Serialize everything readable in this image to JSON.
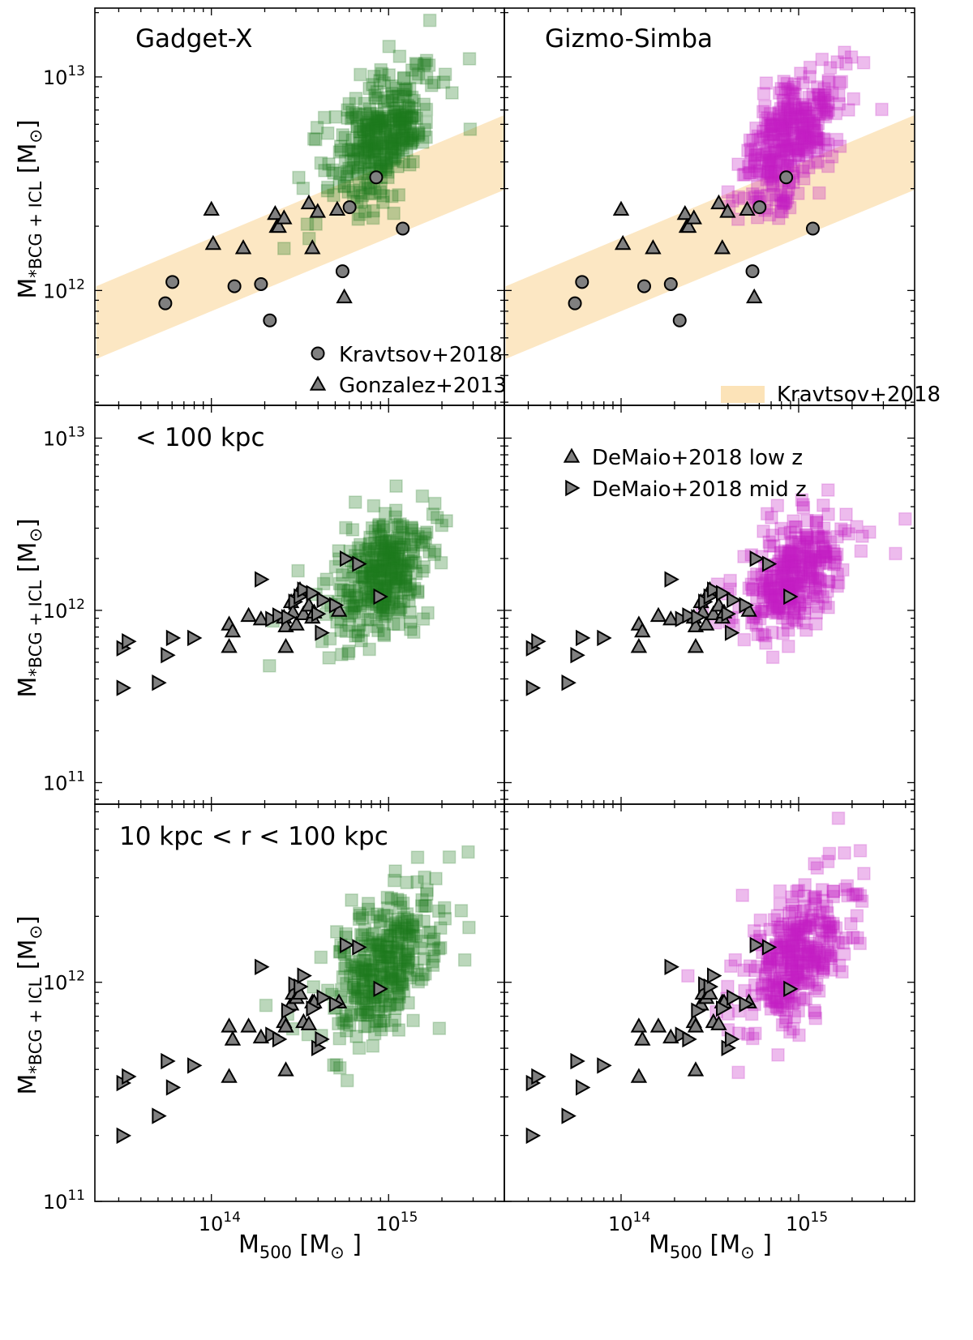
{
  "colors": {
    "gadget": "#1f7a1f",
    "simba": "#c21ec2",
    "obs_face": "#808080",
    "band": "#fce3b8"
  },
  "axis_text": {
    "x_label_main": "M",
    "x_label_sub": "500",
    "x_label_unit": "[M",
    "x_label_close": "]",
    "y_label_main": "M",
    "y_label_sub": "*BCG + ICL",
    "y_label_unit": "[M",
    "y_label_close": "]",
    "tick_base": "10",
    "sun_symbol": "⊙"
  },
  "chart_data": [
    {
      "panel": "top-left",
      "type": "scatter",
      "title": "Gadget-X",
      "xscale": "log",
      "yscale": "log",
      "xlim": [
        22000000000000.0,
        4500000000000000.0
      ],
      "ylim": [
        290000000000.0,
        21000000000000.0
      ],
      "xticks": [
        14,
        15
      ],
      "yticks": [
        12,
        13
      ],
      "sim": {
        "color": "gadget",
        "n": 340,
        "x_center": 14.95,
        "x_spread": 0.13,
        "y_center": 12.72,
        "y_spread": 0.14,
        "slope": 0.6
      },
      "band": {
        "label": "Kravtsov+2018",
        "low": [
          [
            13.35,
            11.68
          ],
          [
            15.65,
            12.47
          ]
        ],
        "high": [
          [
            13.35,
            12.02
          ],
          [
            15.65,
            12.82
          ]
        ]
      },
      "obs": [
        {
          "name": "Kravtsov+2018",
          "marker": "circle",
          "x": [
            13.74,
            13.78,
            14.13,
            14.28,
            14.33,
            14.74,
            14.78,
            14.93,
            15.08
          ],
          "y": [
            11.94,
            12.04,
            12.02,
            12.03,
            11.86,
            12.09,
            12.39,
            12.53,
            12.29
          ]
        },
        {
          "name": "Gonzalez+2013",
          "marker": "triangle-up",
          "x": [
            14.0,
            14.01,
            14.18,
            14.36,
            14.37,
            14.38,
            14.41,
            14.55,
            14.57,
            14.6,
            14.71,
            14.75
          ],
          "y": [
            12.38,
            12.22,
            12.2,
            12.36,
            12.3,
            12.3,
            12.34,
            12.41,
            12.2,
            12.37,
            12.38,
            11.97
          ]
        }
      ],
      "legend": {
        "position": "bottom-right",
        "entries": [
          "Kravtsov+2018",
          "Gonzalez+2013"
        ]
      }
    },
    {
      "panel": "top-right",
      "type": "scatter",
      "title": "Gizmo-Simba",
      "xscale": "log",
      "yscale": "log",
      "xlim": [
        22000000000000.0,
        4500000000000000.0
      ],
      "ylim": [
        290000000000.0,
        21000000000000.0
      ],
      "xticks": [
        14,
        15
      ],
      "yticks": [
        12,
        13
      ],
      "sim": {
        "color": "simba",
        "n": 340,
        "x_center": 14.95,
        "x_spread": 0.13,
        "y_center": 12.7,
        "y_spread": 0.14,
        "slope": 0.6
      },
      "band": {
        "label": "Kravtsov+2018",
        "low": [
          [
            13.35,
            11.68
          ],
          [
            15.65,
            12.47
          ]
        ],
        "high": [
          [
            13.35,
            12.02
          ],
          [
            15.65,
            12.82
          ]
        ]
      },
      "obs": [
        {
          "name": "Kravtsov+2018",
          "marker": "circle",
          "x": [
            13.74,
            13.78,
            14.13,
            14.28,
            14.33,
            14.74,
            14.78,
            14.93,
            15.08
          ],
          "y": [
            11.94,
            12.04,
            12.02,
            12.03,
            11.86,
            12.09,
            12.39,
            12.53,
            12.29
          ]
        },
        {
          "name": "Gonzalez+2013",
          "marker": "triangle-up",
          "x": [
            14.0,
            14.01,
            14.18,
            14.36,
            14.37,
            14.38,
            14.41,
            14.55,
            14.57,
            14.6,
            14.71,
            14.75
          ],
          "y": [
            12.38,
            12.22,
            12.2,
            12.36,
            12.3,
            12.3,
            12.34,
            12.41,
            12.2,
            12.37,
            12.38,
            11.97
          ]
        }
      ],
      "legend": {
        "position": "bottom-right",
        "entries": [
          "Kravtsov+2018"
        ]
      }
    },
    {
      "panel": "middle-left",
      "type": "scatter",
      "title": "< 100 kpc",
      "xscale": "log",
      "yscale": "log",
      "xlim": [
        22000000000000.0,
        4500000000000000.0
      ],
      "ylim": [
        75000000000.0,
        15500000000000.0
      ],
      "xticks": [
        14,
        15
      ],
      "yticks": [
        11,
        12,
        13
      ],
      "sim": {
        "color": "gadget",
        "n": 330,
        "x_center": 14.96,
        "x_spread": 0.14,
        "y_center": 12.2,
        "y_spread": 0.17,
        "slope": 0.5
      },
      "obs": [
        {
          "name": "DeMaio+2018 low z",
          "marker": "triangle-up",
          "x": [
            14.1,
            14.12,
            14.1,
            14.21,
            14.28,
            14.41,
            14.42,
            14.45,
            14.46,
            14.48,
            14.5,
            14.52,
            14.55,
            14.57,
            14.58,
            14.72,
            14.42
          ],
          "y": [
            11.92,
            11.88,
            11.79,
            11.97,
            11.95,
            11.96,
            11.91,
            12.05,
            11.99,
            11.92,
            12.12,
            11.98,
            12.03,
            11.96,
            11.99,
            12.0,
            11.79
          ]
        },
        {
          "name": "DeMaio+2018 mid z",
          "marker": "triangle-right",
          "x": [
            13.5,
            13.53,
            13.5,
            13.7,
            13.75,
            13.78,
            13.9,
            14.28,
            14.34,
            14.38,
            14.43,
            14.47,
            14.5,
            14.52,
            14.57,
            14.6,
            14.62,
            14.7,
            14.76,
            14.83,
            14.95,
            14.63
          ],
          "y": [
            11.78,
            11.82,
            11.55,
            11.58,
            11.74,
            11.84,
            11.84,
            12.18,
            11.95,
            11.97,
            11.96,
            12.05,
            12.08,
            12.12,
            12.1,
            11.98,
            11.87,
            12.03,
            12.3,
            12.27,
            12.08,
            12.06
          ]
        }
      ],
      "legend": {
        "position": "top-left",
        "entries": []
      }
    },
    {
      "panel": "middle-right",
      "type": "scatter",
      "title": "",
      "xscale": "log",
      "yscale": "log",
      "xlim": [
        22000000000000.0,
        4500000000000000.0
      ],
      "ylim": [
        75000000000.0,
        15500000000000.0
      ],
      "xticks": [
        14,
        15
      ],
      "yticks": [
        11,
        12,
        13
      ],
      "sim": {
        "color": "simba",
        "n": 330,
        "x_center": 14.98,
        "x_spread": 0.14,
        "y_center": 12.2,
        "y_spread": 0.15,
        "slope": 0.5
      },
      "obs": [
        {
          "name": "DeMaio+2018 low z",
          "marker": "triangle-up",
          "x": [
            14.1,
            14.12,
            14.1,
            14.21,
            14.28,
            14.41,
            14.42,
            14.45,
            14.46,
            14.48,
            14.5,
            14.52,
            14.55,
            14.57,
            14.58,
            14.72,
            14.42
          ],
          "y": [
            11.92,
            11.88,
            11.79,
            11.97,
            11.95,
            11.96,
            11.91,
            12.05,
            11.99,
            11.92,
            12.12,
            11.98,
            12.03,
            11.96,
            11.99,
            12.0,
            11.79
          ]
        },
        {
          "name": "DeMaio+2018 mid z",
          "marker": "triangle-right",
          "x": [
            13.5,
            13.53,
            13.5,
            13.7,
            13.75,
            13.78,
            13.9,
            14.28,
            14.34,
            14.38,
            14.43,
            14.47,
            14.5,
            14.52,
            14.57,
            14.6,
            14.62,
            14.7,
            14.76,
            14.83,
            14.95,
            14.63
          ],
          "y": [
            11.78,
            11.82,
            11.55,
            11.58,
            11.74,
            11.84,
            11.84,
            12.18,
            11.95,
            11.97,
            11.96,
            12.05,
            12.08,
            12.12,
            12.1,
            11.98,
            11.87,
            12.03,
            12.3,
            12.27,
            12.08,
            12.06
          ]
        }
      ],
      "legend": {
        "position": "top-left",
        "entries": [
          "DeMaio+2018 low z",
          "DeMaio+2018 mid z"
        ]
      }
    },
    {
      "panel": "bottom-left",
      "type": "scatter",
      "title": "10 kpc < r < 100 kpc",
      "xscale": "log",
      "yscale": "log",
      "xlim": [
        22000000000000.0,
        4500000000000000.0
      ],
      "ylim": [
        100000000000.0,
        6500000000000.0
      ],
      "xticks": [
        14,
        15
      ],
      "yticks": [
        11,
        12
      ],
      "sim": {
        "color": "gadget",
        "n": 330,
        "x_center": 14.97,
        "x_spread": 0.14,
        "y_center": 12.08,
        "y_spread": 0.16,
        "slope": 0.5
      },
      "obs": [
        {
          "name": "DeMaio+2018 low z",
          "marker": "triangle-up",
          "x": [
            14.1,
            14.12,
            14.1,
            14.21,
            14.28,
            14.41,
            14.42,
            14.45,
            14.46,
            14.48,
            14.5,
            14.52,
            14.55,
            14.57,
            14.58,
            14.72,
            14.42
          ],
          "y": [
            11.8,
            11.74,
            11.57,
            11.8,
            11.75,
            11.82,
            11.8,
            11.9,
            11.95,
            11.93,
            11.95,
            11.82,
            11.81,
            11.91,
            11.91,
            11.91,
            11.6
          ]
        },
        {
          "name": "DeMaio+2018 mid z",
          "marker": "triangle-right",
          "x": [
            13.5,
            13.53,
            13.5,
            13.7,
            13.75,
            13.78,
            13.9,
            14.28,
            14.34,
            14.38,
            14.43,
            14.47,
            14.5,
            14.52,
            14.57,
            14.6,
            14.62,
            14.7,
            14.76,
            14.83,
            14.95,
            14.63
          ],
          "y": [
            11.54,
            11.57,
            11.3,
            11.39,
            11.64,
            11.52,
            11.62,
            12.07,
            11.76,
            11.74,
            11.87,
            11.99,
            11.98,
            12.03,
            11.88,
            11.7,
            11.74,
            11.9,
            12.17,
            12.16,
            11.97,
            11.93
          ]
        }
      ],
      "legend": {
        "position": "none",
        "entries": []
      }
    },
    {
      "panel": "bottom-right",
      "type": "scatter",
      "title": "",
      "xscale": "log",
      "yscale": "log",
      "xlim": [
        22000000000000.0,
        4500000000000000.0
      ],
      "ylim": [
        100000000000.0,
        6500000000000.0
      ],
      "xticks": [
        14,
        15
      ],
      "yticks": [
        11,
        12
      ],
      "sim": {
        "color": "simba",
        "n": 330,
        "x_center": 14.99,
        "x_spread": 0.14,
        "y_center": 12.1,
        "y_spread": 0.14,
        "slope": 0.5
      },
      "obs": [
        {
          "name": "DeMaio+2018 low z",
          "marker": "triangle-up",
          "x": [
            14.1,
            14.12,
            14.1,
            14.21,
            14.28,
            14.41,
            14.42,
            14.45,
            14.46,
            14.48,
            14.5,
            14.52,
            14.55,
            14.57,
            14.58,
            14.72,
            14.42
          ],
          "y": [
            11.8,
            11.74,
            11.57,
            11.8,
            11.75,
            11.82,
            11.8,
            11.9,
            11.95,
            11.93,
            11.95,
            11.82,
            11.81,
            11.91,
            11.91,
            11.91,
            11.6
          ]
        },
        {
          "name": "DeMaio+2018 mid z",
          "marker": "triangle-right",
          "x": [
            13.5,
            13.53,
            13.5,
            13.7,
            13.75,
            13.78,
            13.9,
            14.28,
            14.34,
            14.38,
            14.43,
            14.47,
            14.5,
            14.52,
            14.57,
            14.6,
            14.62,
            14.7,
            14.76,
            14.83,
            14.95,
            14.63
          ],
          "y": [
            11.54,
            11.57,
            11.3,
            11.39,
            11.64,
            11.52,
            11.62,
            12.07,
            11.76,
            11.74,
            11.87,
            11.99,
            11.98,
            12.03,
            11.88,
            11.7,
            11.74,
            11.9,
            12.17,
            12.16,
            11.97,
            11.93
          ]
        }
      ],
      "legend": {
        "position": "none",
        "entries": []
      }
    }
  ]
}
